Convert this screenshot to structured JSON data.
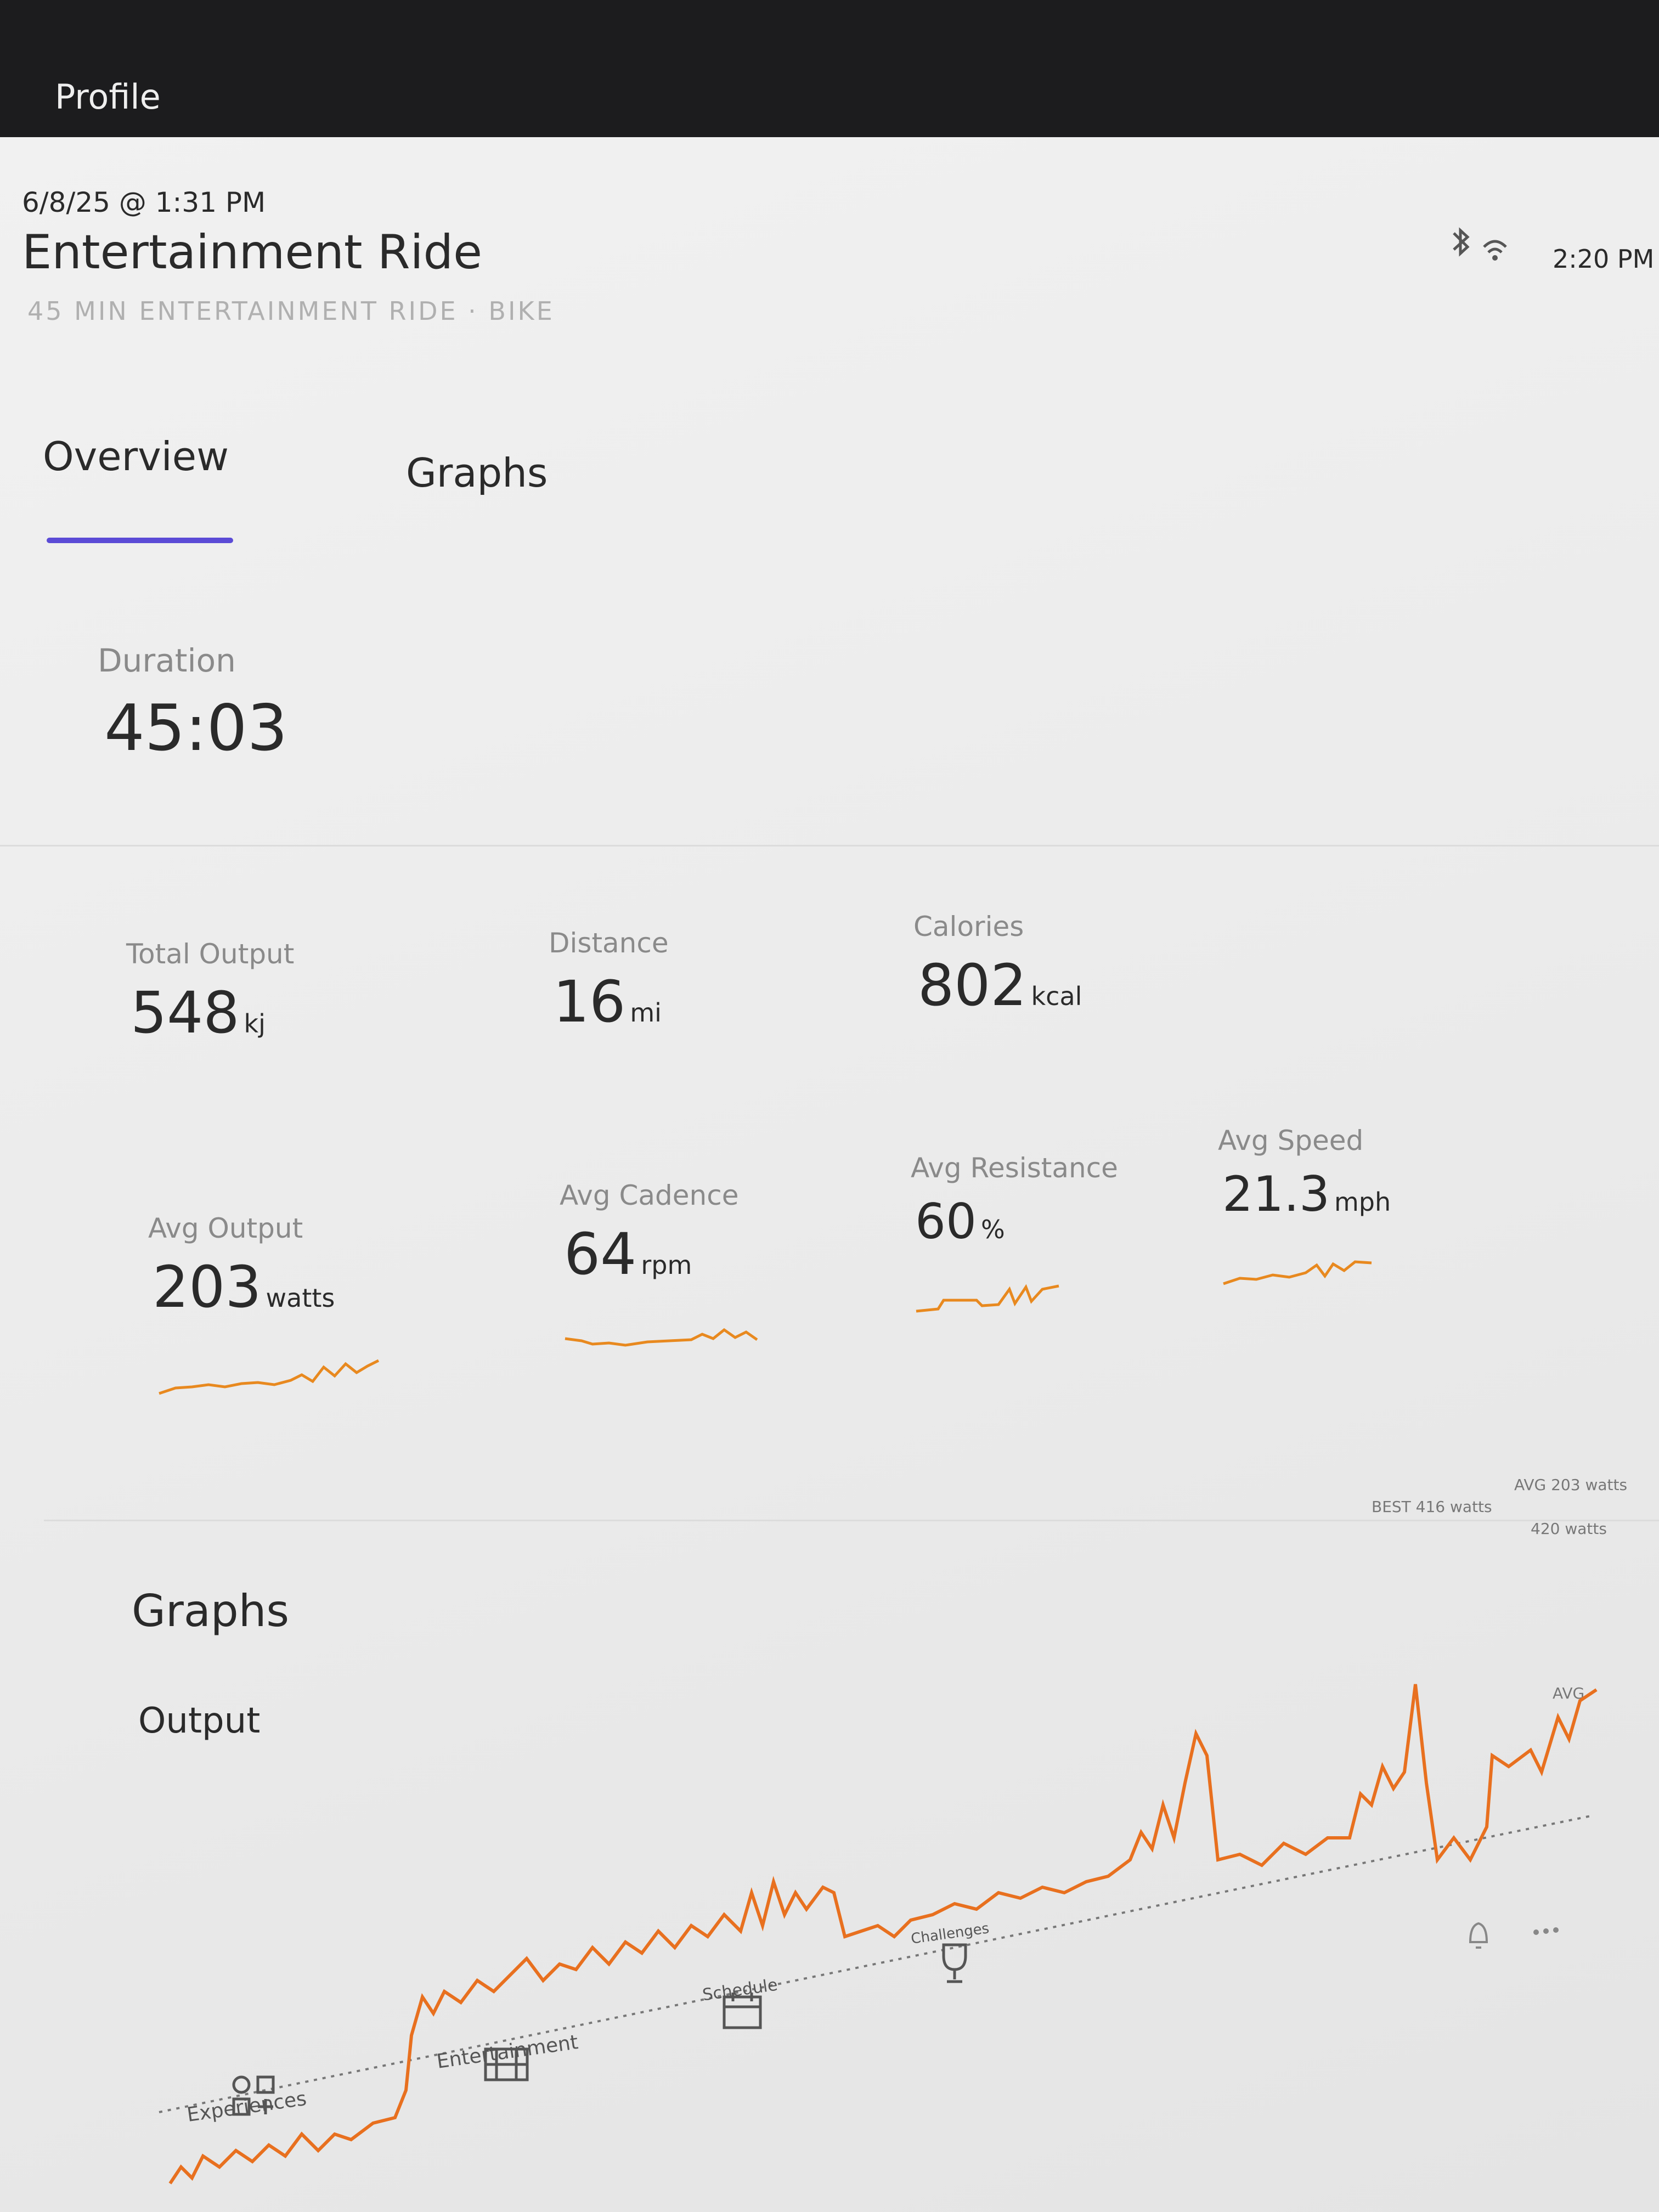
{
  "header": {
    "back": "Profile",
    "status_time": "2:20 PM"
  },
  "ride": {
    "date": "6/8/25 @ 1:31 PM",
    "title": "Entertainment Ride",
    "subtitle": "45 MIN ENTERTAINMENT RIDE · BIKE"
  },
  "tabs": [
    "Overview",
    "Graphs"
  ],
  "duration": {
    "label": "Duration",
    "value": "45:03"
  },
  "metrics": [
    {
      "label": "Total Output",
      "value": 548,
      "unit": "kj"
    },
    {
      "label": "Distance",
      "value": 16,
      "unit": "mi"
    },
    {
      "label": "Calories",
      "value": 802,
      "unit": "kcal"
    },
    {
      "label": "Avg Output",
      "value": 203,
      "unit": "watts"
    },
    {
      "label": "Avg Cadence",
      "value": 64,
      "unit": "rpm"
    },
    {
      "label": "Avg Resistance",
      "value": 60,
      "unit": "%"
    },
    {
      "label": "Avg Speed",
      "value": 21.3,
      "unit": "mph"
    }
  ],
  "graphs": {
    "title": "Graphs",
    "output": {
      "label": "Output",
      "best": "BEST 416 watts",
      "avg": "AVG 203 watts",
      "max_label": "420 watts",
      "avg_line": "AVG"
    }
  },
  "nav": [
    "Experiences",
    "Entertainment",
    "Schedule",
    "Challenges"
  ]
}
